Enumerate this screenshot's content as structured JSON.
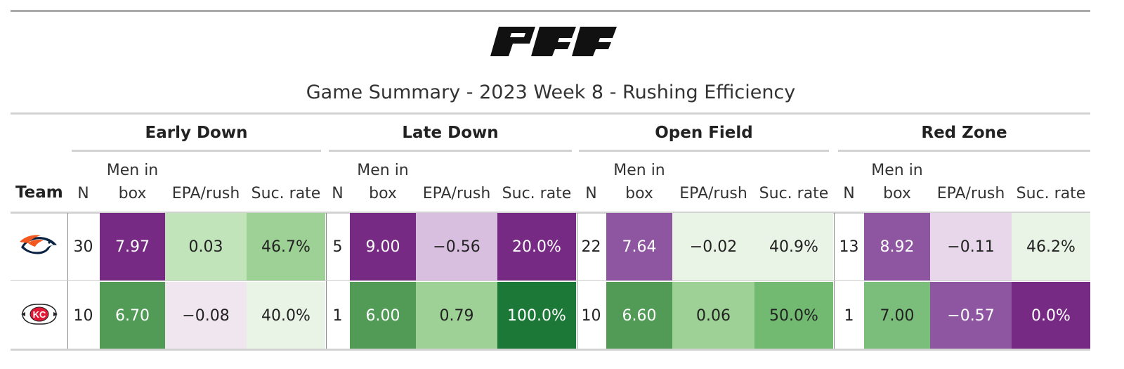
{
  "header": {
    "logo_text": "PFF",
    "title": "Game Summary - 2023 Week 8 - Rushing Efficiency"
  },
  "table": {
    "team_header": "Team",
    "groups": [
      {
        "title": "Early Down",
        "columns": {
          "n": "N",
          "box": "Men in\nbox",
          "epa": "EPA/rush",
          "suc": "Suc. rate"
        }
      },
      {
        "title": "Late Down",
        "columns": {
          "n": "N",
          "box": "Men in\nbox",
          "epa": "EPA/rush",
          "suc": "Suc. rate"
        }
      },
      {
        "title": "Open Field",
        "columns": {
          "n": "N",
          "box": "Men in\nbox",
          "epa": "EPA/rush",
          "suc": "Suc. rate"
        }
      },
      {
        "title": "Red Zone",
        "columns": {
          "n": "N",
          "box": "Men in\nbox",
          "epa": "EPA/rush",
          "suc": "Suc. rate"
        }
      }
    ],
    "rows": [
      {
        "team_icon": "broncos-logo-icon",
        "cells": [
          {
            "n": "30",
            "box": "7.97",
            "epa": "0.03",
            "suc": "46.7%"
          },
          {
            "n": "5",
            "box": "9.00",
            "epa": "−0.56",
            "suc": "20.0%"
          },
          {
            "n": "22",
            "box": "7.64",
            "epa": "−0.02",
            "suc": "40.9%"
          },
          {
            "n": "13",
            "box": "8.92",
            "epa": "−0.11",
            "suc": "46.2%"
          }
        ],
        "colors": [
          {
            "box": "#762a83",
            "epa": "#c2e4bb",
            "suc": "#9dd195"
          },
          {
            "box": "#762a83",
            "epa": "#d9bfdf",
            "suc": "#762a83"
          },
          {
            "box": "#8e56a0",
            "epa": "#e9f4e6",
            "suc": "#e9f4e6"
          },
          {
            "box": "#8e56a0",
            "epa": "#e8d7ea",
            "suc": "#e9f4e6"
          }
        ],
        "dark": [
          {
            "box": true,
            "epa": false,
            "suc": false
          },
          {
            "box": true,
            "epa": false,
            "suc": true
          },
          {
            "box": true,
            "epa": false,
            "suc": false
          },
          {
            "box": true,
            "epa": false,
            "suc": false
          }
        ]
      },
      {
        "team_icon": "chiefs-logo-icon",
        "cells": [
          {
            "n": "10",
            "box": "6.70",
            "epa": "−0.08",
            "suc": "40.0%"
          },
          {
            "n": "1",
            "box": "6.00",
            "epa": "0.79",
            "suc": "100.0%"
          },
          {
            "n": "10",
            "box": "6.60",
            "epa": "0.06",
            "suc": "50.0%"
          },
          {
            "n": "1",
            "box": "7.00",
            "epa": "−0.57",
            "suc": "0.0%"
          }
        ],
        "colors": [
          {
            "box": "#519b57",
            "epa": "#f0e6f0",
            "suc": "#e9f4e6"
          },
          {
            "box": "#519b57",
            "epa": "#9dd195",
            "suc": "#1b7837"
          },
          {
            "box": "#519b57",
            "epa": "#9dd195",
            "suc": "#72b972"
          },
          {
            "box": "#7bbd7a",
            "epa": "#8e56a0",
            "suc": "#762a83"
          }
        ],
        "dark": [
          {
            "box": true,
            "epa": false,
            "suc": false
          },
          {
            "box": true,
            "epa": false,
            "suc": true
          },
          {
            "box": true,
            "epa": false,
            "suc": false
          },
          {
            "box": false,
            "epa": true,
            "suc": true
          }
        ]
      }
    ]
  }
}
